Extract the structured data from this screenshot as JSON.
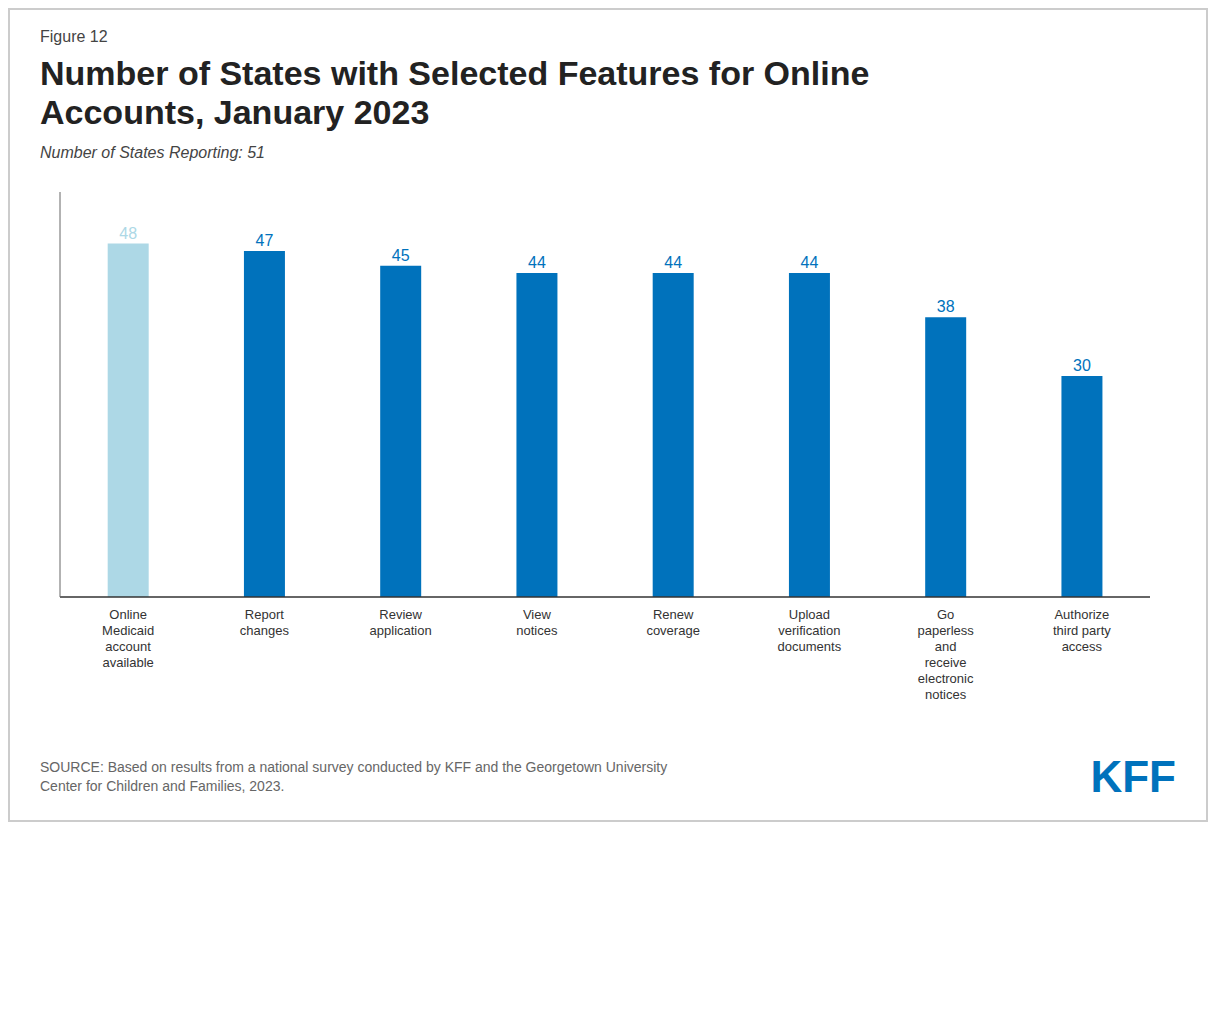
{
  "chart_data": {
    "type": "bar",
    "figure_label": "Figure 12",
    "title": "Number of States with Selected Features for Online\nAccounts, January 2023",
    "subtitle": "Number of States Reporting: 51",
    "source": "SOURCE: Based on results from a national survey conducted by KFF and the Georgetown University\nCenter for Children and Families, 2023.",
    "logo_text": "KFF",
    "categories": [
      "Online\nMedicaid\naccount\navailable",
      "Report\nchanges",
      "Review\napplication",
      "View\nnotices",
      "Renew\ncoverage",
      "Upload\nverification\ndocuments",
      "Go\npaperless\nand\nreceive\nelectronic\nnotices",
      "Authorize\nthird party\naccess"
    ],
    "values": [
      48,
      47,
      45,
      44,
      44,
      44,
      38,
      30
    ],
    "colors": [
      "#ADD8E6",
      "#0072BC",
      "#0072BC",
      "#0072BC",
      "#0072BC",
      "#0072BC",
      "#0072BC",
      "#0072BC"
    ],
    "ylim": [
      0,
      55
    ],
    "grid": false,
    "data_labels": true,
    "tick_labels": "x"
  }
}
